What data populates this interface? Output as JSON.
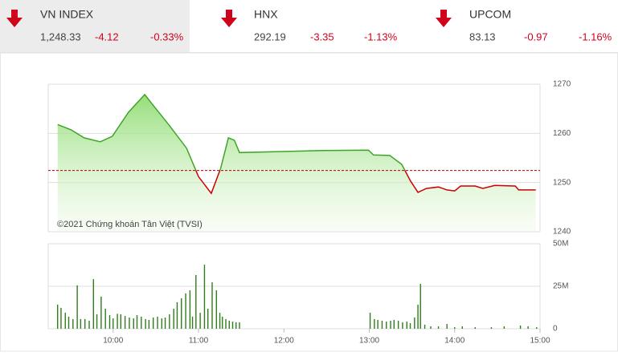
{
  "header": {
    "tickers": [
      {
        "name": "VN INDEX",
        "value": "1,248.33",
        "change": "-4.12",
        "percent": "-0.33%"
      },
      {
        "name": "HNX",
        "value": "292.19",
        "change": "-3.35",
        "percent": "-1.13%"
      },
      {
        "name": "UPCOM",
        "value": "83.13",
        "change": "-0.97",
        "percent": "-1.16%"
      }
    ]
  },
  "chart_data": [
    {
      "type": "line",
      "annotation": "©2021 Chứng khoán Tân Việt (TVSI)",
      "x": [
        9.35,
        9.51,
        9.66,
        9.85,
        9.99,
        10.18,
        10.37,
        10.46,
        10.65,
        10.86,
        11.0,
        11.15,
        11.26,
        11.35,
        11.42,
        11.48,
        11.97,
        12.44,
        12.99,
        13.05,
        13.24,
        13.38,
        13.48,
        13.57,
        13.67,
        13.81,
        13.91,
        14.0,
        14.07,
        14.24,
        14.33,
        14.47,
        14.71,
        14.75,
        14.95
      ],
      "values": [
        1261.8,
        1260.7,
        1259.1,
        1258.3,
        1259.4,
        1264.3,
        1267.9,
        1265.9,
        1261.8,
        1257.0,
        1251.2,
        1247.8,
        1252.9,
        1259.1,
        1258.6,
        1256.1,
        1256.3,
        1256.5,
        1256.6,
        1255.6,
        1255.5,
        1253.7,
        1250.4,
        1248.0,
        1248.8,
        1249.1,
        1248.5,
        1248.3,
        1249.3,
        1249.3,
        1248.8,
        1249.4,
        1249.3,
        1248.5,
        1248.5
      ],
      "reference": 1252.45,
      "color": "#3fa52a",
      "color_below": "#cc0000",
      "reference_color": "#b00000",
      "xlim": [
        9.24,
        15
      ],
      "ylim": [
        1240,
        1270
      ],
      "yticks": [
        1240,
        1250,
        1260,
        1270
      ],
      "grid": true
    },
    {
      "type": "bar",
      "color": "#2f7d1a",
      "x": [
        9.35,
        9.39,
        9.44,
        9.48,
        9.53,
        9.58,
        9.62,
        9.67,
        9.72,
        9.77,
        9.81,
        9.86,
        9.91,
        9.96,
        10.0,
        10.05,
        10.09,
        10.14,
        10.19,
        10.24,
        10.28,
        10.33,
        10.38,
        10.42,
        10.47,
        10.52,
        10.57,
        10.61,
        10.66,
        10.71,
        10.75,
        10.8,
        10.85,
        10.9,
        10.93,
        10.97,
        11.02,
        11.07,
        11.11,
        11.16,
        11.21,
        11.25,
        11.28,
        11.32,
        11.36,
        11.4,
        11.44,
        11.48,
        13.01,
        13.06,
        13.1,
        13.15,
        13.2,
        13.25,
        13.29,
        13.34,
        13.39,
        13.44,
        13.48,
        13.53,
        13.57,
        13.6,
        13.65,
        13.72,
        13.81,
        13.91,
        14.0,
        14.09,
        14.24,
        14.43,
        14.58,
        14.77,
        14.86,
        14.96
      ],
      "values": [
        14.2,
        12.3,
        9.4,
        7.1,
        5.7,
        25.5,
        5.7,
        5.7,
        4.7,
        29.2,
        8.5,
        18.9,
        11.8,
        8.0,
        6.1,
        8.8,
        8.5,
        7.5,
        6.6,
        6.1,
        8.0,
        7.1,
        5.7,
        5.2,
        6.6,
        7.1,
        6.1,
        6.6,
        8.5,
        11.8,
        15.6,
        17.9,
        20.8,
        22.6,
        7.1,
        31.6,
        9.4,
        37.7,
        11.8,
        27.4,
        22.6,
        9.4,
        7.1,
        5.7,
        4.7,
        4.2,
        3.8,
        3.8,
        9.4,
        5.7,
        5.2,
        4.7,
        4.2,
        4.7,
        5.2,
        4.7,
        3.8,
        4.2,
        3.3,
        6.6,
        14.2,
        26.4,
        2.4,
        1.4,
        1.4,
        2.8,
        0.9,
        1.4,
        0.9,
        0.9,
        1.4,
        1.9,
        1.4,
        0.9
      ],
      "xlim": [
        9.24,
        15
      ],
      "ylim": [
        0,
        50
      ],
      "yticks": [
        0,
        {
          "value": 25,
          "label": "25M"
        },
        {
          "value": 50,
          "label": "50M"
        }
      ],
      "xticks": [
        {
          "value": 10,
          "label": "10:00"
        },
        {
          "value": 11,
          "label": "11:00"
        },
        {
          "value": 12,
          "label": "12:00"
        },
        {
          "value": 13,
          "label": "13:00"
        },
        {
          "value": 14,
          "label": "14:00"
        },
        {
          "value": 15,
          "label": "15:00"
        }
      ],
      "grid": true
    }
  ]
}
